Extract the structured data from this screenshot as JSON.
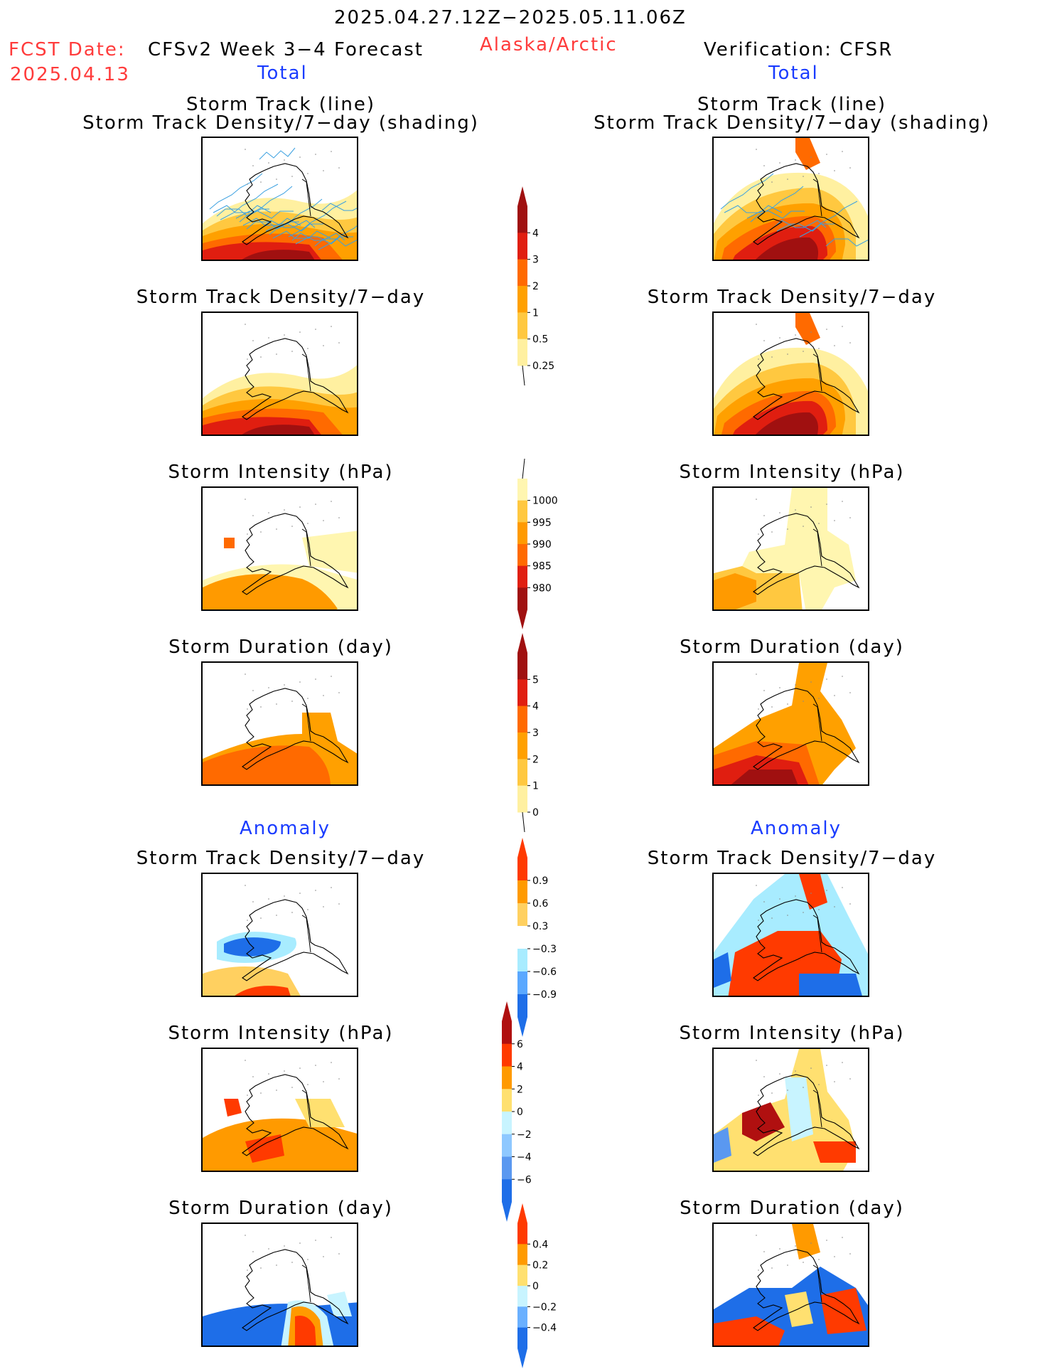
{
  "header": {
    "period": "2025.04.27.12Z−2025.05.11.06Z",
    "fcst_date_label": "FCST Date:",
    "fcst_date_value": "2025.04.13",
    "left_model": "CFSv2 Week 3−4 Forecast",
    "region": "Alaska/Arctic",
    "right_model": "Verification: CFSR",
    "total_label": "Total",
    "anomaly_label": "Anomaly"
  },
  "panel_titles": {
    "track_line": "Storm Track (line)",
    "track_shading": "Storm Track Density/7−day (shading)",
    "density": "Storm Track Density/7−day",
    "intensity": "Storm Intensity (hPa)",
    "duration": "Storm Duration (day)"
  },
  "colorbars": {
    "density": {
      "labels": [
        "4",
        "3",
        "2",
        "1",
        "0.5",
        "0.25"
      ],
      "colors": [
        "#a01010",
        "#e01e10",
        "#ff6a00",
        "#ffa000",
        "#ffc840",
        "#fff0a0"
      ]
    },
    "intensity": {
      "labels": [
        "1000",
        "995",
        "990",
        "985",
        "980"
      ],
      "colors": [
        "#fff6b0",
        "#ffc840",
        "#ff9a00",
        "#ff6a00",
        "#e01e10",
        "#a01010"
      ]
    },
    "duration": {
      "labels": [
        "5",
        "4",
        "3",
        "2",
        "1",
        "0"
      ],
      "colors": [
        "#a01010",
        "#e01e10",
        "#ff6a00",
        "#ffa000",
        "#ffc840",
        "#fff0a0"
      ]
    },
    "density_anom": {
      "labels": [
        "0.9",
        "0.6",
        "0.3",
        "−0.3",
        "−0.6",
        "−0.9"
      ],
      "colors": [
        "#ff3a00",
        "#ff9a00",
        "#ffd060",
        "#ffffff",
        "#a8ecff",
        "#5aa8ff",
        "#1e6ee8"
      ]
    },
    "intensity_anom": {
      "labels": [
        "6",
        "4",
        "2",
        "0",
        "−2",
        "−4",
        "−6"
      ],
      "colors": [
        "#b01010",
        "#ff3a00",
        "#ff9a00",
        "#ffe070",
        "#c8f4ff",
        "#8ec8ff",
        "#5a98f0",
        "#1e6ee8"
      ]
    },
    "duration_anom": {
      "labels": [
        "0.4",
        "0.2",
        "0",
        "−0.2",
        "−0.4"
      ],
      "colors": [
        "#ff3a00",
        "#ff9a00",
        "#ffe070",
        "#c8f4ff",
        "#6ab0ff",
        "#1e6ee8"
      ]
    }
  },
  "colors": {
    "title_red": "#ff3b3b",
    "title_blue": "#1a3cff",
    "track_line": "#3aa0e0"
  }
}
